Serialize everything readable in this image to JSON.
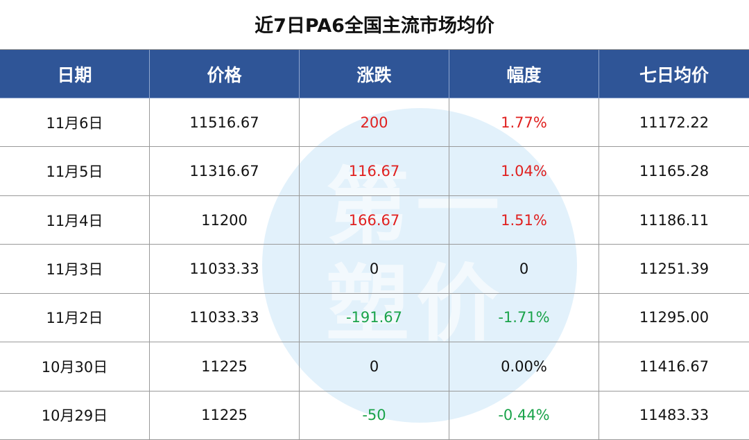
{
  "title": "近7日PA6全国主流市场均价",
  "watermark": "第一塑价",
  "table": {
    "header": [
      "日期",
      "价格",
      "涨跌",
      "幅度",
      "七日均价"
    ],
    "rows": [
      [
        "11月6日",
        "11516.67",
        "200",
        "1.77%",
        "11172.22"
      ],
      [
        "11月5日",
        "11316.67",
        "116.67",
        "1.04%",
        "11165.28"
      ],
      [
        "11月4日",
        "11200",
        "166.67",
        "1.51%",
        "11186.11"
      ],
      [
        "11月3日",
        "11033.33",
        "0",
        "0",
        "11251.39"
      ],
      [
        "11月2日",
        "11033.33",
        "-191.67",
        "-1.71%",
        "11295.00"
      ],
      [
        "10月30日",
        "11225",
        "0",
        "0.00%",
        "11416.67"
      ],
      [
        "10月29日",
        "11225",
        "-50",
        "-0.44%",
        "11483.33"
      ]
    ]
  },
  "colors": {
    "header_bg": "#2f5597",
    "up": "#e0201f",
    "down": "#1aa34a",
    "flat": "#111111"
  }
}
